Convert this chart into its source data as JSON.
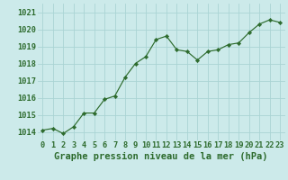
{
  "x": [
    0,
    1,
    2,
    3,
    4,
    5,
    6,
    7,
    8,
    9,
    10,
    11,
    12,
    13,
    14,
    15,
    16,
    17,
    18,
    19,
    20,
    21,
    22,
    23
  ],
  "y": [
    1014.1,
    1014.2,
    1013.9,
    1014.3,
    1015.1,
    1015.1,
    1015.9,
    1016.1,
    1017.2,
    1018.0,
    1018.4,
    1019.4,
    1019.6,
    1018.8,
    1018.7,
    1018.2,
    1018.7,
    1018.8,
    1019.1,
    1019.2,
    1019.8,
    1020.3,
    1020.55,
    1020.4
  ],
  "line_color": "#2d6b2d",
  "marker_color": "#2d6b2d",
  "bg_color": "#cceaea",
  "grid_color": "#aad4d4",
  "xlabel": "Graphe pression niveau de la mer (hPa)",
  "ylim_min": 1013.5,
  "ylim_max": 1021.5,
  "xlim_min": -0.5,
  "xlim_max": 23.5,
  "yticks": [
    1014,
    1015,
    1016,
    1017,
    1018,
    1019,
    1020,
    1021
  ],
  "xticks": [
    0,
    1,
    2,
    3,
    4,
    5,
    6,
    7,
    8,
    9,
    10,
    11,
    12,
    13,
    14,
    15,
    16,
    17,
    18,
    19,
    20,
    21,
    22,
    23
  ],
  "title_fontsize": 7.5,
  "tick_fontsize": 6.2,
  "label_color": "#2d6b2d"
}
